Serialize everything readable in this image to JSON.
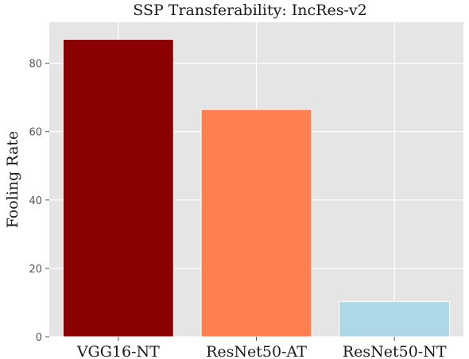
{
  "chart_data": {
    "type": "bar",
    "title": "SSP Transferability: IncRes-v2",
    "xlabel": "",
    "ylabel": "Fooling Rate",
    "categories": [
      "VGG16-NT",
      "ResNet50-AT",
      "ResNet50-NT"
    ],
    "values": [
      87.0,
      66.5,
      10.3
    ],
    "colors": [
      "#8b0000",
      "#ff7f50",
      "#add8e6"
    ],
    "ylim": [
      0,
      92
    ],
    "yticks": [
      0,
      20,
      40,
      60,
      80
    ],
    "grid": true,
    "background": "#e5e5e5",
    "legend": "none"
  }
}
